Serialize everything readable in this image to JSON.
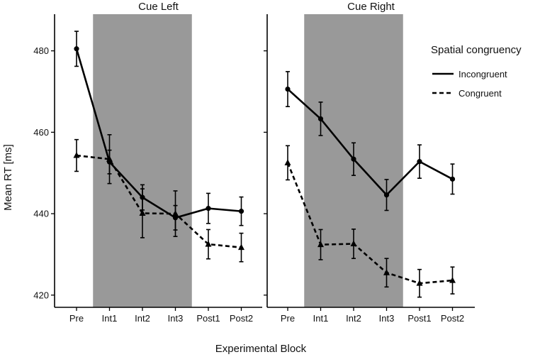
{
  "chart_data": {
    "type": "line",
    "xlabel": "Experimental Block",
    "ylabel": "Mean RT [ms]",
    "categories": [
      "Pre",
      "Int1",
      "Int2",
      "Int3",
      "Post1",
      "Post2"
    ],
    "ylim": [
      417,
      489
    ],
    "yticks": [
      420,
      440,
      460,
      480
    ],
    "shaded_region": [
      "Int1",
      "Int3"
    ],
    "colors": {
      "line": "#000000",
      "shade": "#999999",
      "axis": "#000000"
    },
    "legend": {
      "title": "Spatial congruency",
      "position": "right",
      "entries": [
        {
          "label": "Incongruent",
          "style": "solid",
          "marker": "circle"
        },
        {
          "label": "Congruent",
          "style": "dashed",
          "marker": "triangle"
        }
      ]
    },
    "panels": [
      {
        "title": "Cue Left",
        "series": [
          {
            "name": "Incongruent",
            "values": [
              480.5,
              452.7,
              444.0,
              439.0,
              441.3,
              440.6
            ],
            "errors": [
              4.3,
              2.9,
              3.1,
              3.0,
              3.7,
              3.5
            ]
          },
          {
            "name": "Congruent",
            "values": [
              454.3,
              453.4,
              440.1,
              440.0,
              432.5,
              431.7
            ],
            "errors": [
              3.9,
              6.0,
              6.0,
              5.6,
              3.6,
              3.5
            ]
          }
        ]
      },
      {
        "title": "Cue Right",
        "series": [
          {
            "name": "Incongruent",
            "values": [
              470.6,
              463.3,
              453.4,
              444.6,
              452.8,
              448.5
            ],
            "errors": [
              4.3,
              4.1,
              4.0,
              3.8,
              4.1,
              3.7
            ]
          },
          {
            "name": "Congruent",
            "values": [
              452.5,
              432.4,
              432.6,
              425.5,
              422.9,
              423.6
            ],
            "errors": [
              4.2,
              3.7,
              3.6,
              3.5,
              3.4,
              3.3
            ]
          }
        ]
      }
    ]
  }
}
